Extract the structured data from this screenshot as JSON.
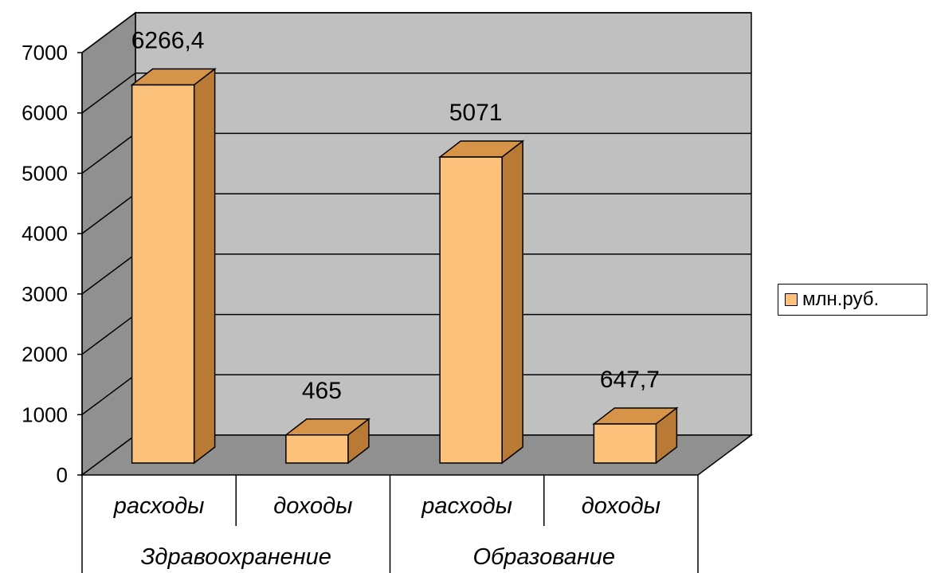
{
  "chart_data": {
    "type": "bar",
    "three_d": true,
    "groups": [
      {
        "label": "Здравоохранение",
        "categories": [
          "расходы",
          "доходы"
        ]
      },
      {
        "label": "Образование",
        "categories": [
          "расходы",
          "доходы"
        ]
      }
    ],
    "categories": [
      "расходы",
      "доходы",
      "расходы",
      "доходы"
    ],
    "series": [
      {
        "name": "млн.руб.",
        "values": [
          6266.4,
          465,
          5071,
          647.7
        ],
        "color": "#fcc27c"
      }
    ],
    "data_labels": [
      "6266,4",
      "465",
      "5071",
      "647,7"
    ],
    "y_ticks": [
      "0",
      "1000",
      "2000",
      "3000",
      "4000",
      "5000",
      "6000",
      "7000"
    ],
    "ylim": [
      0,
      7000
    ],
    "grid": true,
    "legend": {
      "position": "right",
      "entries": [
        "млн.руб."
      ]
    },
    "colors": {
      "bar_front": "#fcc27c",
      "bar_side": "#b87a35",
      "bar_top": "#d69448",
      "wall_back": "#c0c0c0",
      "wall_side": "#909090",
      "floor": "#909090"
    }
  }
}
